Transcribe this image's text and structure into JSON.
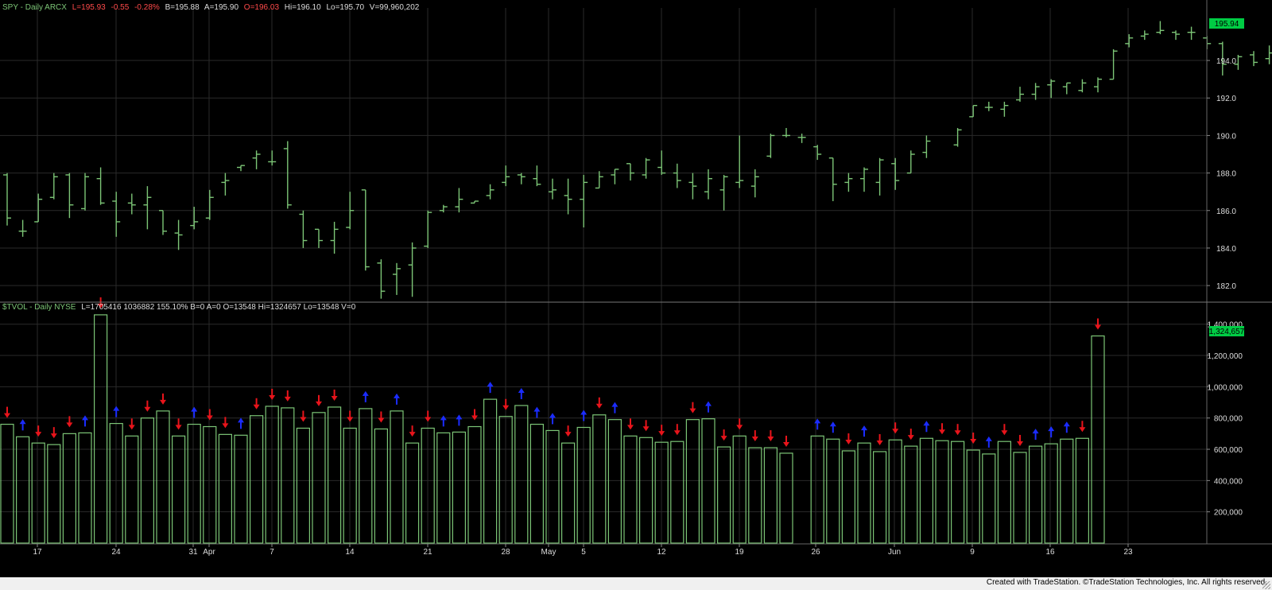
{
  "price_panel": {
    "symbol": "SPY - Daily  ARCX",
    "last": "L=195.93",
    "change": "-0.55",
    "change_pct": "-0.28%",
    "bid": "B=195.88",
    "ask": "A=195.90",
    "open": "O=196.03",
    "high": "Hi=196.10",
    "low": "Lo=195.70",
    "volume": "V=99,960,202",
    "last_badge": "195.94"
  },
  "volume_panel": {
    "symbol": "$TVOL - Daily  NYSE",
    "values": "L=1705416  1036882  155.10%  B=0  A=0  O=13548  Hi=1324657  Lo=13548  V=0",
    "last_badge": "1,324,657"
  },
  "footer": {
    "text": "Created with TradeStation. ©TradeStation Technologies, Inc. All rights reserved."
  },
  "colors": {
    "bar": "#7cc576",
    "up_arrow": "#1b2cff",
    "down_arrow": "#e8141b",
    "grid": "#2a2a2a",
    "text": "#dddddd",
    "badge": "#00cc44"
  },
  "chart_data": [
    {
      "type": "ohlc",
      "series": [
        {
          "name": "SPY",
          "ohlc": [
            [
              187.9,
              188.0,
              185.2,
              185.6
            ],
            [
              184.9,
              185.5,
              184.6,
              184.9
            ],
            [
              185.4,
              186.9,
              185.4,
              186.6
            ],
            [
              186.7,
              188.0,
              186.6,
              187.8
            ],
            [
              187.9,
              188.0,
              185.6,
              186.3
            ],
            [
              186.1,
              188.0,
              186.0,
              187.8
            ],
            [
              187.7,
              188.3,
              186.3,
              186.4
            ],
            [
              186.5,
              187.0,
              184.6,
              185.4
            ],
            [
              186.4,
              186.9,
              185.8,
              186.3
            ],
            [
              186.3,
              187.3,
              185.0,
              186.7
            ],
            [
              186.0,
              186.0,
              184.7,
              184.9
            ],
            [
              184.8,
              185.5,
              183.9,
              184.7
            ],
            [
              185.2,
              186.2,
              185.0,
              185.4
            ],
            [
              185.6,
              187.1,
              185.5,
              186.7
            ],
            [
              187.5,
              188.0,
              186.8,
              187.6
            ],
            [
              188.3,
              188.4,
              188.1,
              188.4
            ],
            [
              188.8,
              189.2,
              188.2,
              189.0
            ],
            [
              188.6,
              189.2,
              188.4,
              188.6
            ],
            [
              189.3,
              189.7,
              186.1,
              186.3
            ],
            [
              185.8,
              186.0,
              184.0,
              184.4
            ],
            [
              185.0,
              185.0,
              184.0,
              184.4
            ],
            [
              184.4,
              185.4,
              183.7,
              185.0
            ],
            [
              185.1,
              187.0,
              185.0,
              186.0
            ],
            [
              187.1,
              187.1,
              182.8,
              183.0
            ],
            [
              183.2,
              183.4,
              181.3,
              181.7
            ],
            [
              182.6,
              183.2,
              181.5,
              182.9
            ],
            [
              183.1,
              184.3,
              181.4,
              184.0
            ],
            [
              184.1,
              186.0,
              184.0,
              185.9
            ],
            [
              186.0,
              186.3,
              185.9,
              186.2
            ],
            [
              186.2,
              187.2,
              185.9,
              186.6
            ],
            [
              186.4,
              186.5,
              186.4,
              186.5
            ],
            [
              186.8,
              187.4,
              186.6,
              187.1
            ],
            [
              187.5,
              188.4,
              187.3,
              187.8
            ],
            [
              187.9,
              188.0,
              187.4,
              187.8
            ],
            [
              187.7,
              188.4,
              187.3,
              187.4
            ],
            [
              187.0,
              187.7,
              186.6,
              187.1
            ],
            [
              186.8,
              187.7,
              185.8,
              186.6
            ],
            [
              186.6,
              187.9,
              185.1,
              187.5
            ],
            [
              187.2,
              188.1,
              187.2,
              187.8
            ],
            [
              187.9,
              188.2,
              187.4,
              188.2
            ],
            [
              188.5,
              188.5,
              187.6,
              188.0
            ],
            [
              187.9,
              188.8,
              187.7,
              188.7
            ],
            [
              188.3,
              189.2,
              187.9,
              188.0
            ],
            [
              188.0,
              188.5,
              187.2,
              187.6
            ],
            [
              187.5,
              188.0,
              186.6,
              187.3
            ],
            [
              187.0,
              188.2,
              186.6,
              187.7
            ],
            [
              187.1,
              187.9,
              186.0,
              187.8
            ],
            [
              187.5,
              190.0,
              187.2,
              187.6
            ],
            [
              187.3,
              188.2,
              186.7,
              187.8
            ],
            [
              188.9,
              190.1,
              188.8,
              190.0
            ],
            [
              190.0,
              190.4,
              189.9,
              190.0
            ],
            [
              189.9,
              190.1,
              189.6,
              189.9
            ],
            [
              189.4,
              189.5,
              188.7,
              189.0
            ],
            [
              188.8,
              188.8,
              186.5,
              187.4
            ],
            [
              187.5,
              188.0,
              187.0,
              187.7
            ],
            [
              187.7,
              188.3,
              187.0,
              188.2
            ],
            [
              187.5,
              188.8,
              186.8,
              188.7
            ],
            [
              188.5,
              188.8,
              187.1,
              187.6
            ],
            [
              188.0,
              189.2,
              188.0,
              189.0
            ],
            [
              189.1,
              190.0,
              188.8,
              189.7
            ],
            [
              189.5,
              190.4,
              189.4,
              190.3
            ],
            [
              191.0,
              191.6,
              191.0,
              191.6
            ],
            [
              191.5,
              191.8,
              191.3,
              191.5
            ],
            [
              191.4,
              191.8,
              191.0,
              191.6
            ],
            [
              191.9,
              192.6,
              191.8,
              192.2
            ],
            [
              192.2,
              192.8,
              191.9,
              192.6
            ],
            [
              192.7,
              193.0,
              192.0,
              192.9
            ],
            [
              192.6,
              192.8,
              192.2,
              192.8
            ],
            [
              192.4,
              193.0,
              192.3,
              192.8
            ],
            [
              192.6,
              193.1,
              192.3,
              193.0
            ],
            [
              193.0,
              194.6,
              193.0,
              194.5
            ],
            [
              194.9,
              195.4,
              194.7,
              195.2
            ],
            [
              195.3,
              195.6,
              195.1,
              195.4
            ],
            [
              195.5,
              196.1,
              195.4,
              195.6
            ],
            [
              195.5,
              195.6,
              195.1,
              195.4
            ],
            [
              195.5,
              195.8,
              195.1,
              195.5
            ],
            [
              195.2,
              195.3,
              194.6,
              194.9
            ],
            [
              194.9,
              195.0,
              193.2,
              193.8
            ],
            [
              193.8,
              194.3,
              193.5,
              194.2
            ],
            [
              194.3,
              194.5,
              193.7,
              193.9
            ],
            [
              194.1,
              194.8,
              193.8,
              194.4
            ],
            [
              194.8,
              194.9,
              194.2,
              194.7
            ],
            [
              194.9,
              196.6,
              194.6,
              196.2
            ],
            [
              196.4,
              196.6,
              195.8,
              196.5
            ],
            [
              196.0,
              196.1,
              195.7,
              195.9
            ]
          ]
        }
      ],
      "ylim": [
        181.2,
        196.8
      ],
      "yticks": [
        182,
        184,
        186,
        188,
        190,
        192,
        194
      ]
    },
    {
      "type": "bar",
      "series": [
        {
          "name": "$TVOL",
          "values": [
            760000,
            680000,
            640000,
            630000,
            700000,
            705000,
            1460000,
            765000,
            685000,
            800000,
            845000,
            685000,
            760000,
            745000,
            695000,
            690000,
            815000,
            875000,
            865000,
            735000,
            835000,
            870000,
            735000,
            860000,
            730000,
            845000,
            640000,
            735000,
            705000,
            710000,
            745000,
            920000,
            810000,
            880000,
            760000,
            720000,
            640000,
            740000,
            820000,
            790000,
            685000,
            675000,
            645000,
            650000,
            790000,
            795000,
            615000,
            685000,
            610000,
            610000,
            575000,
            685000,
            665000,
            590000,
            640000,
            585000,
            660000,
            620000,
            670000,
            655000,
            650000,
            595000,
            570000,
            650000,
            580000,
            620000,
            635000,
            665000,
            670000,
            1325000
          ]
        }
      ],
      "signals": [
        "down",
        "up",
        "down",
        "down",
        "down",
        "up",
        "down",
        "up",
        "down",
        "down",
        "down",
        "down",
        "up",
        "down",
        "down",
        "up",
        "down",
        "down",
        "down",
        "down",
        "down",
        "down",
        "down",
        "up",
        "down",
        "up",
        "down",
        "down",
        "up",
        "up",
        "down",
        "up",
        "down",
        "up",
        "up",
        "up",
        "down",
        "up",
        "down",
        "up",
        "down",
        "down",
        "down",
        "down",
        "down",
        "up",
        "down",
        "down",
        "down",
        "down",
        "down",
        "up",
        "up",
        "down",
        "up",
        "down",
        "down",
        "down",
        "up",
        "down",
        "down",
        "down",
        "up",
        "down",
        "down",
        "up",
        "up",
        "up",
        "down",
        "down"
      ],
      "ylim": [
        0,
        1480000
      ],
      "yticks": [
        "200,000",
        "400,000",
        "600,000",
        "800,000",
        "1,000,000",
        "1,200,000",
        "1,400,000"
      ]
    }
  ],
  "x_axis": {
    "labels": [
      "17",
      "24",
      "31",
      "Apr",
      "7",
      "14",
      "21",
      "28",
      "May",
      "5",
      "12",
      "19",
      "26",
      "Jun",
      "9",
      "16",
      "23"
    ]
  }
}
